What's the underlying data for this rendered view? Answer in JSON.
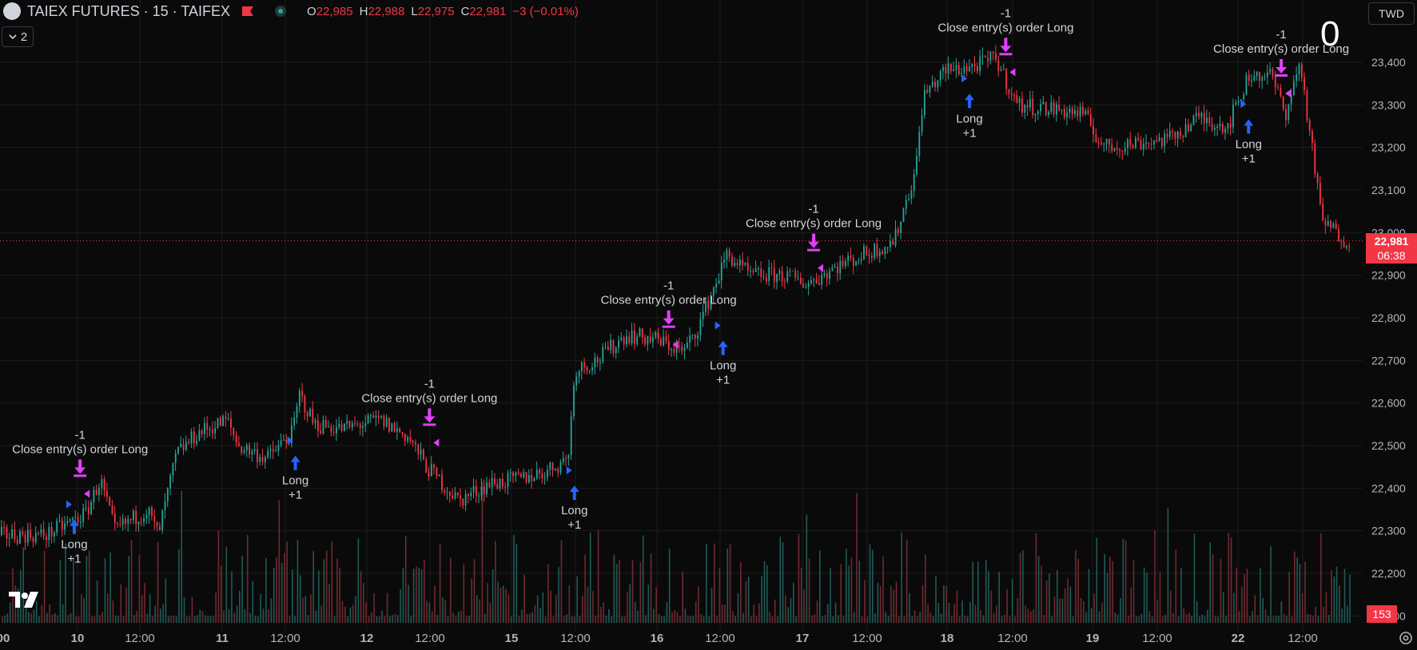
{
  "header": {
    "symbol": "TAIEX FUTURES · 15 · TAIFEX",
    "ohlc": {
      "o_label": "O",
      "o": "22,985",
      "h_label": "H",
      "h": "22,988",
      "l_label": "L",
      "l": "22,975",
      "c_label": "C",
      "c": "22,981",
      "change": "−3 (−0.01%)"
    },
    "indicator_count": "2",
    "currency": "TWD",
    "position": "0"
  },
  "price_axis": {
    "ticks": [
      "23,400",
      "23,300",
      "23,200",
      "23,100",
      "23,000",
      "22,900",
      "22,800",
      "22,700",
      "22,600",
      "22,500",
      "22,400",
      "22,300",
      "22,200",
      "22,100"
    ],
    "current_price": "22,981",
    "countdown": "06:38",
    "volume": "153"
  },
  "time_axis": {
    "ticks": [
      "00",
      "10",
      "12:00",
      "11",
      "12:00",
      "12",
      "12:00",
      "15",
      "12:00",
      "16",
      "12:00",
      "17",
      "12:00",
      "18",
      "12:00",
      "19",
      "12:00",
      "22",
      "12:00"
    ]
  },
  "colors": {
    "up": "#26a69a",
    "down": "#f23645",
    "entry": "#2962ff",
    "exit": "#e040fb",
    "text": "#d1d4dc",
    "grid": "#1c1c1c"
  },
  "icons": {
    "flag": "flag-icon",
    "status": "market-status-icon",
    "chevron": "chevron-down-icon",
    "settings": "settings-gear-icon",
    "logo": "tradingview-logo"
  },
  "chart_data": {
    "type": "candlestick",
    "ylim": [
      22100,
      23430
    ],
    "price_path": [
      [
        0,
        22290
      ],
      [
        0.55,
        22340
      ],
      [
        0.75,
        22420
      ],
      [
        0.95,
        22300
      ],
      [
        1.4,
        22350
      ],
      [
        1.55,
        22290
      ],
      [
        1.8,
        22480
      ],
      [
        2.1,
        22530
      ],
      [
        2.5,
        22560
      ],
      [
        2.65,
        22500
      ],
      [
        3.05,
        22470
      ],
      [
        3.4,
        22530
      ],
      [
        3.5,
        22620
      ],
      [
        3.7,
        22550
      ],
      [
        4.1,
        22540
      ],
      [
        4.6,
        22560
      ],
      [
        5.0,
        22520
      ],
      [
        5.25,
        22450
      ],
      [
        5.7,
        22370
      ],
      [
        6.1,
        22410
      ],
      [
        6.5,
        22420
      ],
      [
        6.9,
        22440
      ],
      [
        7.2,
        22470
      ],
      [
        7.3,
        22680
      ],
      [
        7.6,
        22700
      ],
      [
        8.0,
        22760
      ],
      [
        8.4,
        22750
      ],
      [
        8.8,
        22720
      ],
      [
        9.0,
        22780
      ],
      [
        9.4,
        22950
      ],
      [
        9.7,
        22900
      ],
      [
        10.2,
        22900
      ],
      [
        10.5,
        22880
      ],
      [
        10.9,
        22920
      ],
      [
        11.3,
        22950
      ],
      [
        11.7,
        22980
      ],
      [
        12.0,
        23150
      ],
      [
        12.1,
        23320
      ],
      [
        12.4,
        23380
      ],
      [
        12.8,
        23390
      ],
      [
        13.1,
        23410
      ],
      [
        13.4,
        23300
      ],
      [
        13.9,
        23290
      ],
      [
        14.3,
        23280
      ],
      [
        14.6,
        23200
      ],
      [
        15.0,
        23210
      ],
      [
        15.5,
        23220
      ],
      [
        15.9,
        23270
      ],
      [
        16.3,
        23250
      ],
      [
        16.6,
        23370
      ],
      [
        16.9,
        23370
      ],
      [
        17.1,
        23280
      ],
      [
        17.3,
        23400
      ],
      [
        17.6,
        23030
      ],
      [
        17.9,
        22985
      ]
    ],
    "markers": [
      {
        "kind": "entry",
        "label": "Long",
        "qty": "+1",
        "x": 0.4,
        "price": 22330
      },
      {
        "kind": "exit",
        "label": "Close entry(s) order Long",
        "qty": "-1",
        "x": 0.48,
        "price": 22430
      },
      {
        "kind": "entry",
        "label": "Long",
        "qty": "+1",
        "x": 3.45,
        "price": 22480
      },
      {
        "kind": "exit",
        "label": "Close entry(s) order Long",
        "qty": "-1",
        "x": 5.3,
        "price": 22550
      },
      {
        "kind": "entry",
        "label": "Long",
        "qty": "+1",
        "x": 7.3,
        "price": 22410
      },
      {
        "kind": "exit",
        "label": "Close entry(s) order Long",
        "qty": "-1",
        "x": 8.6,
        "price": 22780
      },
      {
        "kind": "entry",
        "label": "Long",
        "qty": "+1",
        "x": 9.35,
        "price": 22750
      },
      {
        "kind": "exit",
        "label": "Close entry(s) order Long",
        "qty": "-1",
        "x": 10.6,
        "price": 22960
      },
      {
        "kind": "entry",
        "label": "Long",
        "qty": "+1",
        "x": 12.75,
        "price": 23330
      },
      {
        "kind": "exit",
        "label": "Close entry(s) order Long",
        "qty": "-1",
        "x": 13.25,
        "price": 23420
      },
      {
        "kind": "entry",
        "label": "Long",
        "qty": "+1",
        "x": 16.6,
        "price": 23270
      },
      {
        "kind": "exit",
        "label": "Close entry(s) order Long",
        "qty": "-1",
        "x": 17.05,
        "price": 23370
      }
    ]
  }
}
